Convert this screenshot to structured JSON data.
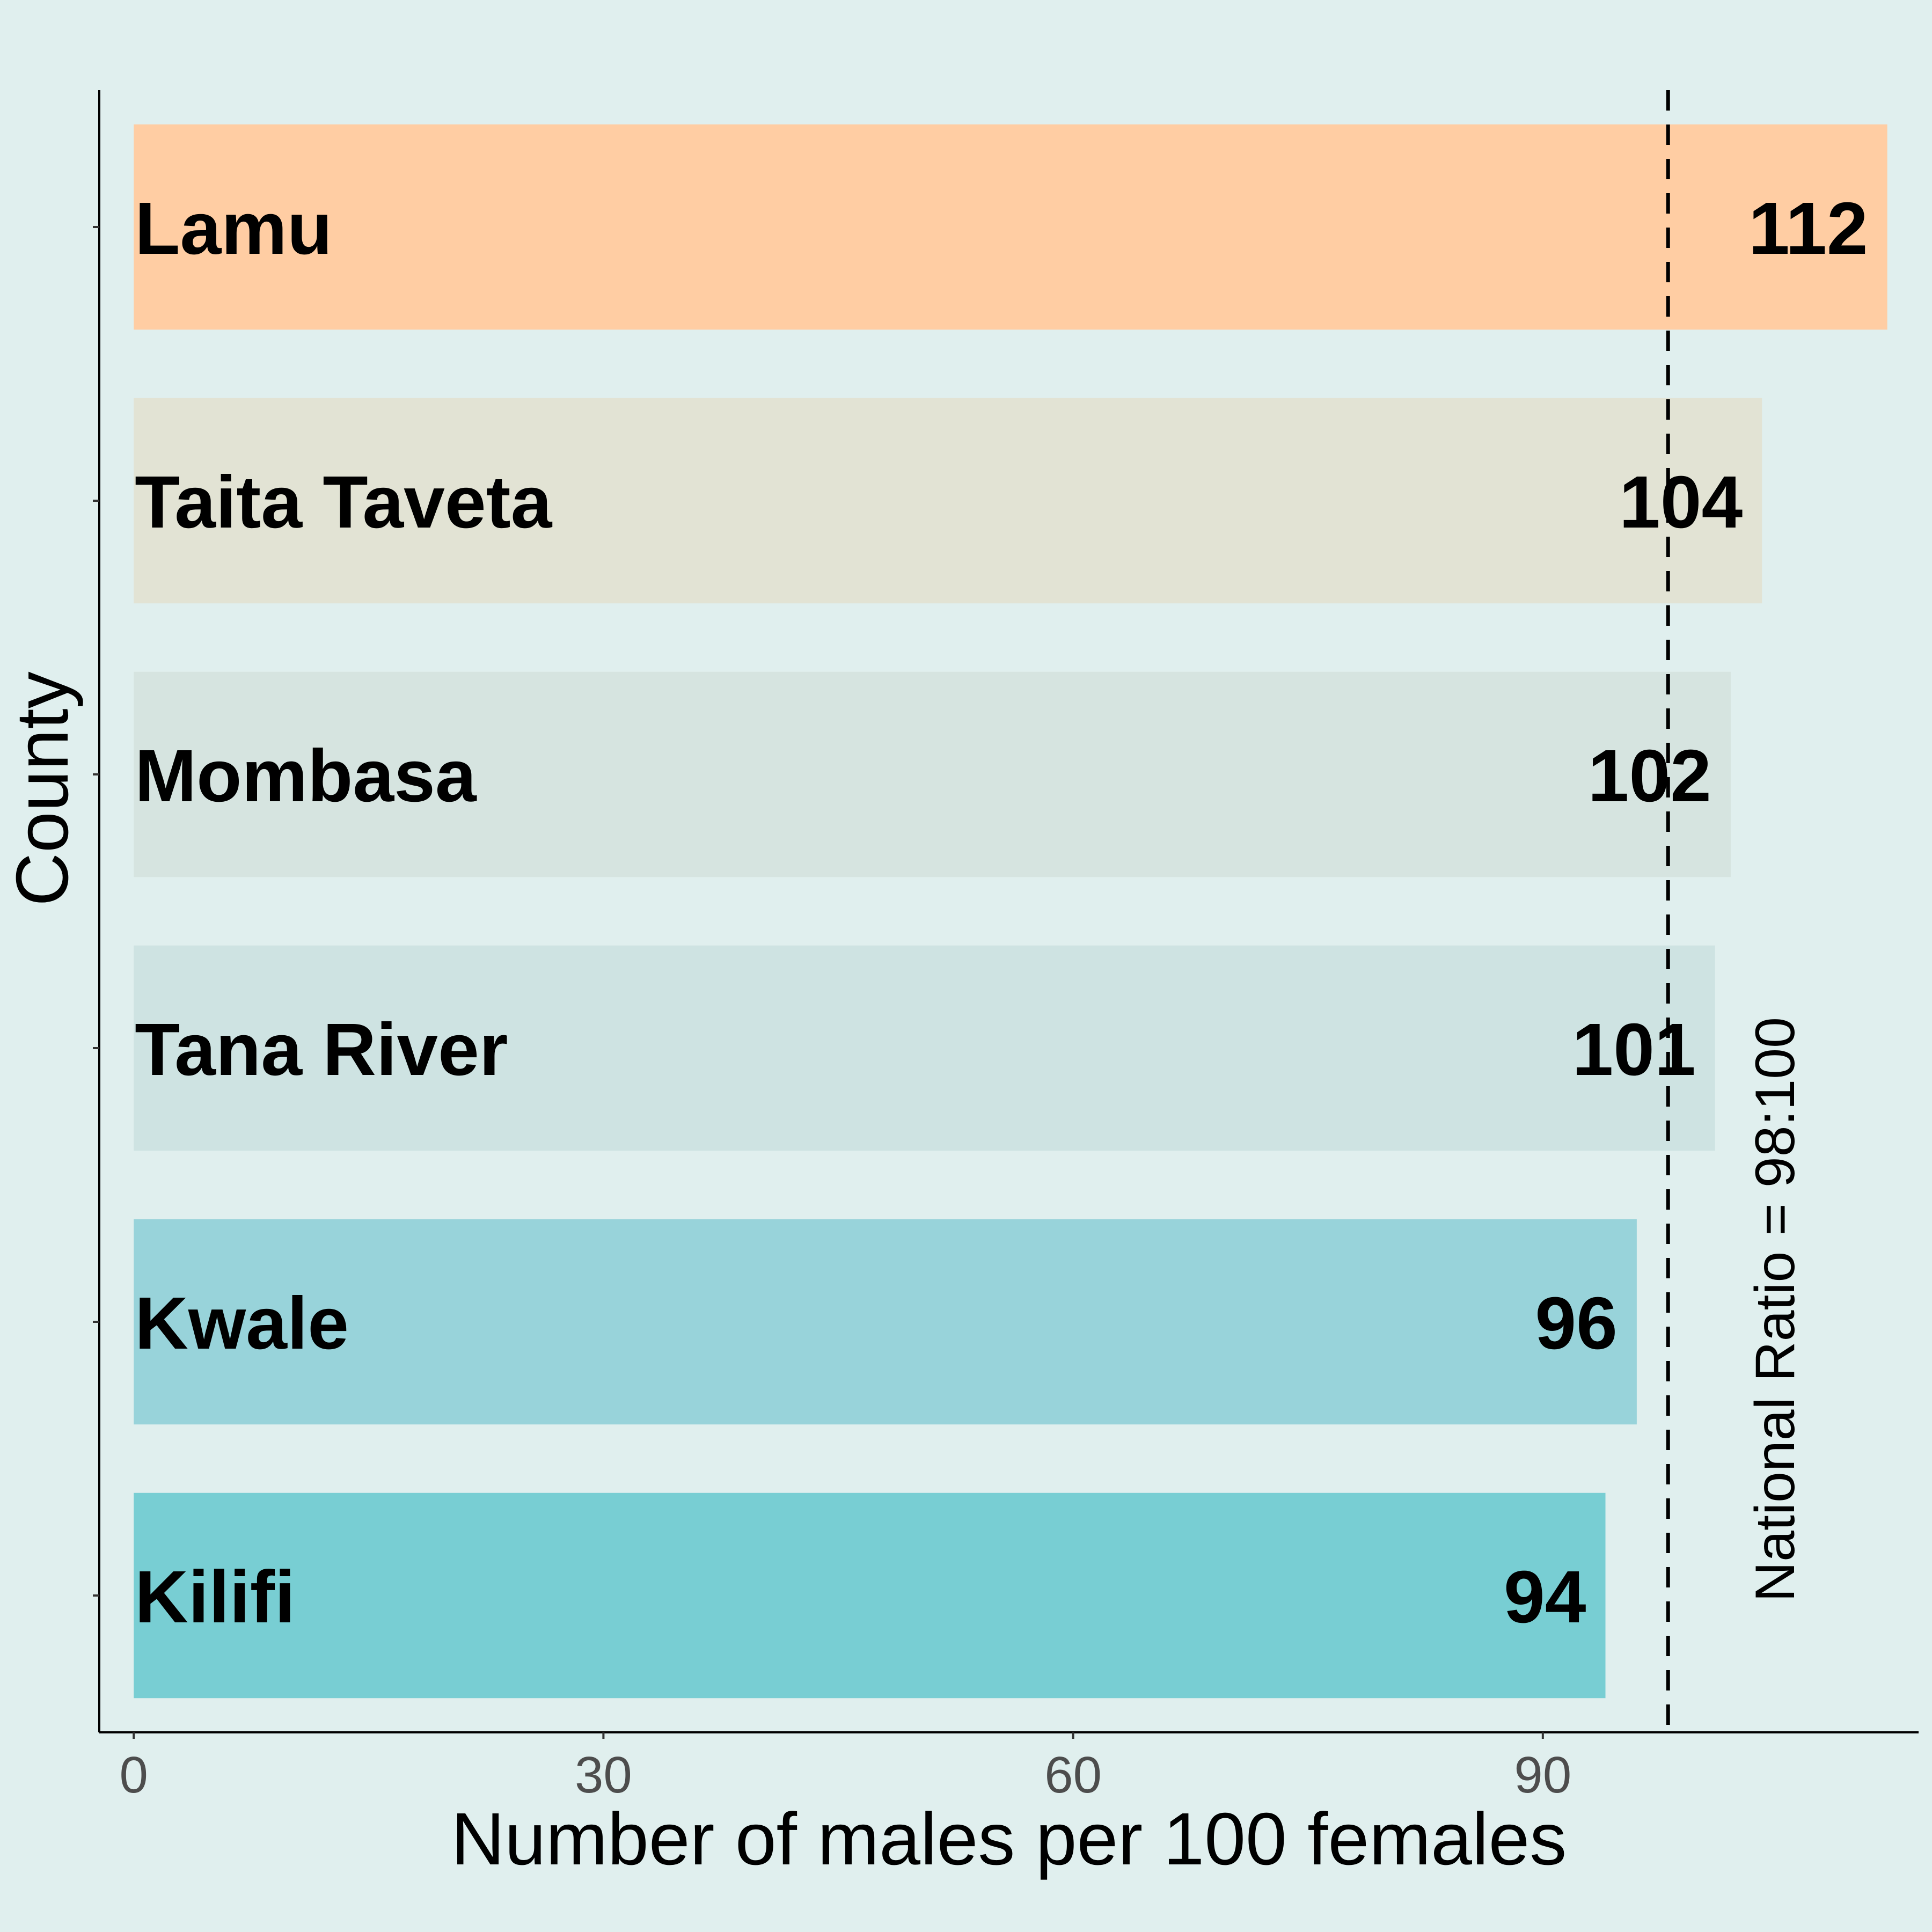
{
  "chart_data": {
    "type": "bar",
    "orientation": "horizontal",
    "categories": [
      "Lamu",
      "Taita Taveta",
      "Mombasa",
      "Tana River",
      "Kwale",
      "Kilifi"
    ],
    "values": [
      112,
      104,
      102,
      101,
      96,
      94
    ],
    "value_labels": [
      "112",
      "104",
      "102",
      "101",
      "96",
      "94"
    ],
    "bar_colors": [
      "#ffcda3",
      "#e2e3d4",
      "#d6e4e0",
      "#cee3e2",
      "#98d3da",
      "#78ced3"
    ],
    "xlabel": "Number of males per 100 females",
    "ylabel": "County",
    "xlim": [
      -2.2,
      114
    ],
    "xticks": [
      0,
      30,
      60,
      90
    ],
    "xtick_labels": [
      "0",
      "30",
      "60",
      "90"
    ],
    "reference_line": {
      "value": 98,
      "label": "National Ratio = 98:100",
      "style": "dashed"
    },
    "grid": false,
    "legend": "none",
    "background_color": "#e0efee"
  }
}
